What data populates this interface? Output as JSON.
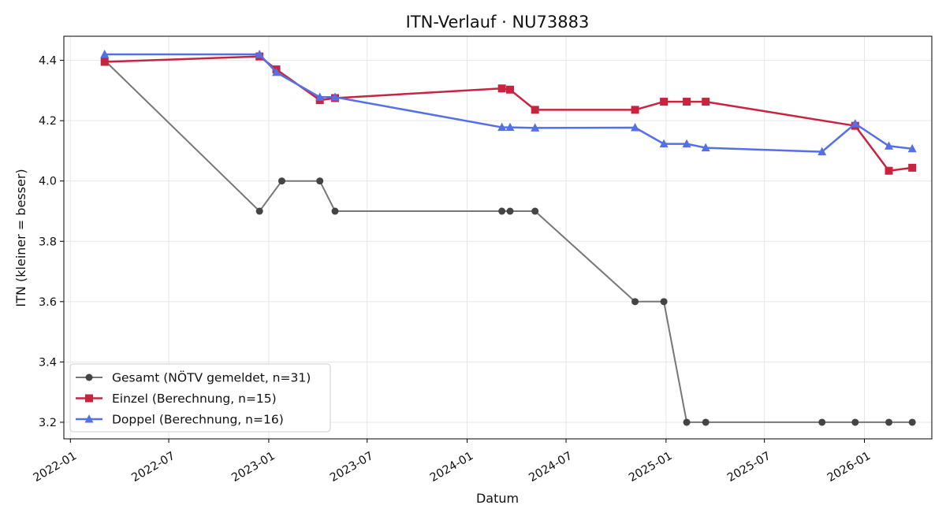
{
  "chart_data": {
    "type": "line",
    "title": "ITN-Verlauf · NU73883",
    "xlabel": "Datum",
    "ylabel": "ITN  (kleiner = besser)",
    "x_ticks": [
      "2022-01",
      "2022-07",
      "2023-01",
      "2023-07",
      "2024-01",
      "2024-07",
      "2025-01",
      "2025-07",
      "2026-01"
    ],
    "y_ticks": [
      "3.2",
      "3.4",
      "3.6",
      "3.8",
      "4.0",
      "4.2",
      "4.4"
    ],
    "xlim": [
      "2021-12-20",
      "2026-05-05"
    ],
    "ylim": [
      3.145,
      4.48
    ],
    "grid": true,
    "legend_position": "lower-left",
    "series": [
      {
        "name": "Gesamt (NÖTV gemeldet, n=31)",
        "color": "#777777",
        "marker_color": "#444444",
        "marker": "circle",
        "points": [
          [
            "2022-03-05",
            4.4
          ],
          [
            "2022-12-15",
            3.9
          ],
          [
            "2023-01-25",
            4.0
          ],
          [
            "2023-04-05",
            4.0
          ],
          [
            "2023-05-03",
            3.9
          ],
          [
            "2024-03-05",
            3.9
          ],
          [
            "2024-03-20",
            3.9
          ],
          [
            "2024-05-05",
            3.9
          ],
          [
            "2024-11-05",
            3.6
          ],
          [
            "2024-12-28",
            3.6
          ],
          [
            "2025-02-08",
            3.2
          ],
          [
            "2025-03-15",
            3.2
          ],
          [
            "2025-10-15",
            3.2
          ],
          [
            "2025-12-15",
            3.2
          ],
          [
            "2026-02-15",
            3.2
          ],
          [
            "2026-03-30",
            3.2
          ]
        ]
      },
      {
        "name": "Einzel (Berechnung, n=15)",
        "color": "#c8243f",
        "marker_color": "#c8243f",
        "marker": "square",
        "points": [
          [
            "2022-03-05",
            4.395
          ],
          [
            "2022-12-15",
            4.413
          ],
          [
            "2023-01-15",
            4.37
          ],
          [
            "2023-04-05",
            4.268
          ],
          [
            "2023-05-03",
            4.275
          ],
          [
            "2024-03-05",
            4.307
          ],
          [
            "2024-03-20",
            4.303
          ],
          [
            "2024-05-05",
            4.236
          ],
          [
            "2024-11-05",
            4.236
          ],
          [
            "2024-12-28",
            4.263
          ],
          [
            "2025-02-08",
            4.263
          ],
          [
            "2025-03-15",
            4.263
          ],
          [
            "2025-12-15",
            4.183
          ],
          [
            "2026-02-15",
            4.034
          ],
          [
            "2026-03-30",
            4.044
          ]
        ]
      },
      {
        "name": "Doppel (Berechnung, n=16)",
        "color": "#5470e8",
        "marker_color": "#5470e8",
        "marker": "triangle",
        "points": [
          [
            "2022-03-05",
            4.42
          ],
          [
            "2022-12-15",
            4.42
          ],
          [
            "2023-01-15",
            4.36
          ],
          [
            "2023-04-05",
            4.278
          ],
          [
            "2023-05-03",
            4.278
          ],
          [
            "2024-03-05",
            4.178
          ],
          [
            "2024-03-20",
            4.178
          ],
          [
            "2024-05-05",
            4.176
          ],
          [
            "2024-11-05",
            4.177
          ],
          [
            "2024-12-28",
            4.123
          ],
          [
            "2025-02-08",
            4.123
          ],
          [
            "2025-03-15",
            4.11
          ],
          [
            "2025-10-15",
            4.097
          ],
          [
            "2025-12-15",
            4.19
          ],
          [
            "2026-02-15",
            4.116
          ],
          [
            "2026-03-30",
            4.107
          ]
        ]
      }
    ]
  }
}
